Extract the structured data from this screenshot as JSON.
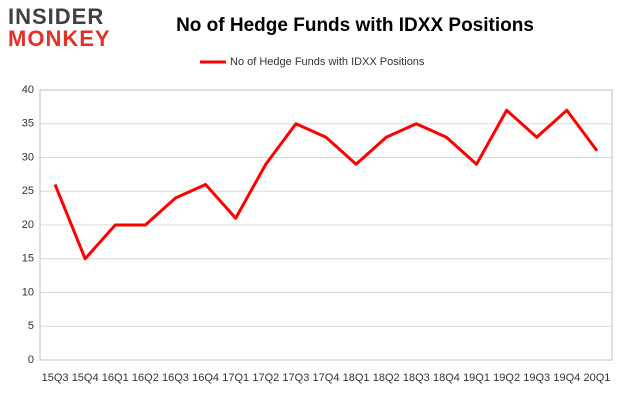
{
  "logo": {
    "top": "INSIDER",
    "bottom": "MONKEY"
  },
  "chart_data": {
    "type": "line",
    "title": "No of Hedge Funds with IDXX Positions",
    "categories": [
      "15Q3",
      "15Q4",
      "16Q1",
      "16Q2",
      "16Q3",
      "16Q4",
      "17Q1",
      "17Q2",
      "17Q3",
      "17Q4",
      "18Q1",
      "18Q2",
      "18Q3",
      "18Q4",
      "19Q1",
      "19Q2",
      "19Q3",
      "19Q4",
      "20Q1"
    ],
    "series": [
      {
        "name": "No of Hedge Funds with IDXX Positions",
        "color": "#ff0000",
        "values": [
          26,
          15,
          20,
          20,
          24,
          26,
          21,
          29,
          35,
          33,
          29,
          33,
          35,
          33,
          29,
          37,
          33,
          37,
          31
        ]
      }
    ],
    "ylim": [
      0,
      40
    ],
    "yticks": [
      0,
      5,
      10,
      15,
      20,
      25,
      30,
      35,
      40
    ],
    "grid": true,
    "legend": "top"
  }
}
